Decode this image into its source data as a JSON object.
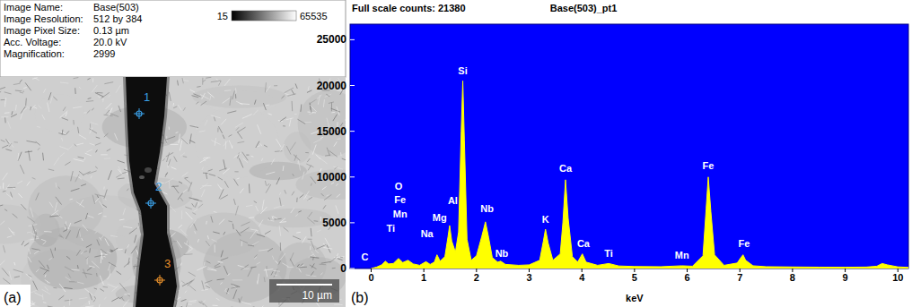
{
  "panel_a": {
    "letter": "(a)",
    "info": [
      [
        "Image Name:",
        "Base(503)"
      ],
      [
        "Image Resolution:",
        "512 by 384"
      ],
      [
        "Image Pixel Size:",
        "0.13 µm"
      ],
      [
        "Acc. Voltage:",
        "20.0 kV"
      ],
      [
        "Magnification:",
        "2999"
      ]
    ],
    "gray_min": 15,
    "gray_max": 65535,
    "points": [
      "1",
      "2",
      "3"
    ],
    "scale_bar": "10 µm"
  },
  "chart_data": {
    "type": "area",
    "panel_label": "(b)",
    "title": "Full scale counts: 21380",
    "subtitle": "Base(503)_pt1",
    "x_label": "keV",
    "x": [
      0,
      0.1,
      0.2,
      0.27,
      0.33,
      0.42,
      0.52,
      0.6,
      0.7,
      0.8,
      0.92,
      1.04,
      1.12,
      1.2,
      1.25,
      1.31,
      1.4,
      1.46,
      1.49,
      1.53,
      1.6,
      1.66,
      1.71,
      1.74,
      1.77,
      1.82,
      1.9,
      2.0,
      2.1,
      2.17,
      2.23,
      2.3,
      2.4,
      2.46,
      2.55,
      2.8,
      3.0,
      3.2,
      3.27,
      3.31,
      3.36,
      3.45,
      3.59,
      3.64,
      3.69,
      3.74,
      3.82,
      3.92,
      4.01,
      4.08,
      4.3,
      4.51,
      4.7,
      5.0,
      5.5,
      5.9,
      6.1,
      6.3,
      6.36,
      6.4,
      6.45,
      6.52,
      6.7,
      6.95,
      7.02,
      7.06,
      7.11,
      7.25,
      7.5,
      8.0,
      8.5,
      9.0,
      9.4,
      9.6,
      9.7,
      9.8,
      10.0,
      10.2
    ],
    "values": [
      0,
      150,
      400,
      800,
      500,
      550,
      1100,
      650,
      900,
      500,
      350,
      750,
      450,
      700,
      1500,
      800,
      1300,
      3500,
      4700,
      3000,
      1800,
      4000,
      15000,
      20500,
      14000,
      3200,
      900,
      1400,
      3500,
      5100,
      3400,
      1200,
      700,
      800,
      450,
      350,
      400,
      900,
      3000,
      4300,
      2800,
      900,
      1600,
      5000,
      9700,
      5500,
      1300,
      700,
      1600,
      700,
      350,
      550,
      280,
      220,
      200,
      300,
      250,
      1400,
      6500,
      10000,
      6200,
      1500,
      350,
      600,
      1200,
      1500,
      900,
      300,
      200,
      170,
      150,
      140,
      160,
      250,
      550,
      400,
      180,
      120
    ],
    "color": "#ffff00",
    "xlim": [
      -0.4,
      10.2
    ],
    "xticks": [
      0,
      1,
      2,
      3,
      4,
      5,
      6,
      7,
      8,
      9,
      10
    ],
    "ylim": [
      0,
      26700
    ],
    "yticks": [
      0,
      5000,
      10000,
      15000,
      20000,
      25000
    ],
    "grid": false,
    "annotations": [
      {
        "text": "C",
        "x": -0.12,
        "y": 900
      },
      {
        "text": "Ti",
        "x": 0.37,
        "y": 4000
      },
      {
        "text": "O",
        "x": 0.52,
        "y": 8600
      },
      {
        "text": "Fe",
        "x": 0.55,
        "y": 7100
      },
      {
        "text": "Mn",
        "x": 0.55,
        "y": 5600
      },
      {
        "text": "Na",
        "x": 1.06,
        "y": 3400
      },
      {
        "text": "Mg",
        "x": 1.3,
        "y": 5200
      },
      {
        "text": "Al",
        "x": 1.55,
        "y": 7000
      },
      {
        "text": "Si",
        "x": 1.74,
        "y": 21200
      },
      {
        "text": "Nb",
        "x": 2.2,
        "y": 6200
      },
      {
        "text": "Nb",
        "x": 2.48,
        "y": 1300
      },
      {
        "text": "K",
        "x": 3.31,
        "y": 5000
      },
      {
        "text": "Ca",
        "x": 3.69,
        "y": 10600
      },
      {
        "text": "Ca",
        "x": 4.03,
        "y": 2300
      },
      {
        "text": "Ti",
        "x": 4.51,
        "y": 1300
      },
      {
        "text": "Mn",
        "x": 5.9,
        "y": 1100
      },
      {
        "text": "Fe",
        "x": 6.4,
        "y": 10900
      },
      {
        "text": "Fe",
        "x": 7.08,
        "y": 2300
      }
    ]
  }
}
